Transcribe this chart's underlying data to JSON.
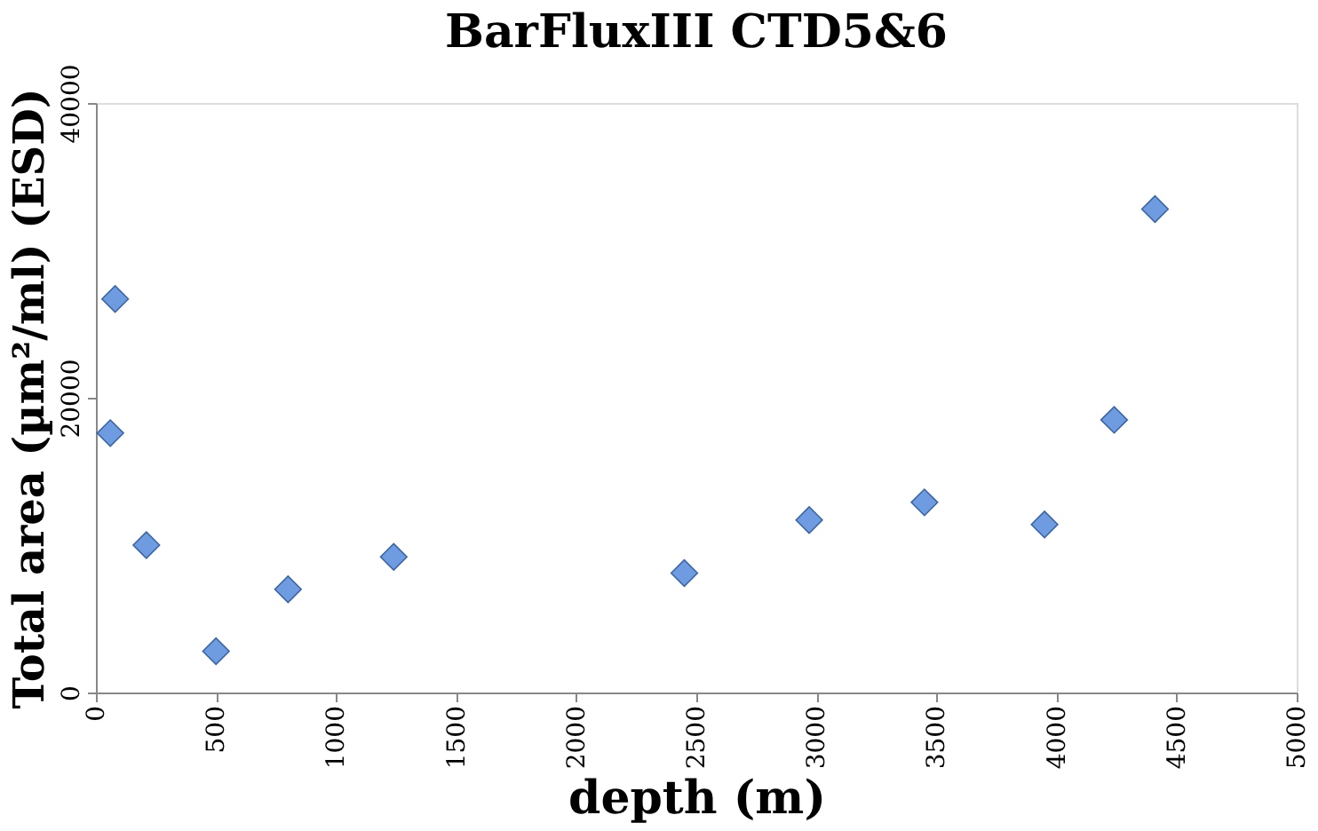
{
  "chart_data": {
    "type": "scatter",
    "title": "BarFluxIII CTD5&6",
    "xlabel": "depth (m)",
    "ylabel": "Total area (µm²/ml) (ESD)",
    "x": [
      80,
      60,
      210,
      500,
      800,
      1240,
      2450,
      2970,
      3450,
      3950,
      4240,
      4410
    ],
    "series": [
      {
        "color": "#6f9be0",
        "values": [
          26700,
          17600,
          10000,
          2800,
          7000,
          9200,
          8100,
          11700,
          12900,
          11400,
          18500,
          32800
        ]
      }
    ],
    "xlim": [
      0,
      5000
    ],
    "xticks": [
      0,
      500,
      1000,
      1500,
      2000,
      2500,
      3000,
      3500,
      4000,
      4500,
      5000
    ],
    "ylim": [
      0,
      40000
    ],
    "yticks": [
      0,
      20000,
      40000
    ],
    "grid": false,
    "marker": "diamond"
  }
}
